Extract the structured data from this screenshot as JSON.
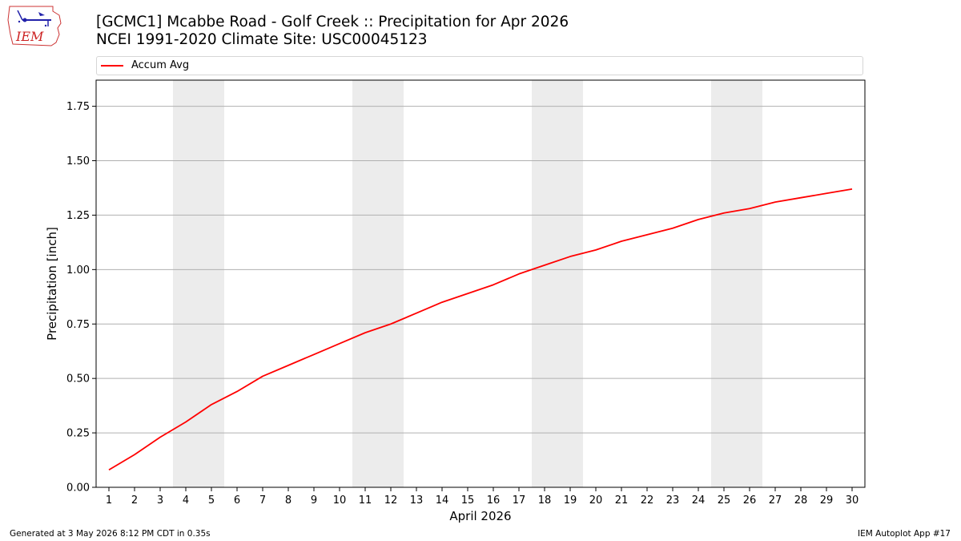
{
  "header": {
    "title_line1": "[GCMC1] Mcabbe Road - Golf Creek :: Precipitation for Apr 2026",
    "title_line2": "NCEI 1991-2020 Climate Site: USC00045123",
    "logo_text": "IEM"
  },
  "footer": {
    "generated": "Generated at 3 May 2026 8:12 PM CDT in 0.35s",
    "app": "IEM Autoplot App #17"
  },
  "colors": {
    "series": "#ff0000",
    "weekend_band": "#ececec",
    "grid": "#b0b0b0"
  },
  "chart_data": {
    "type": "line",
    "title": "[GCMC1] Mcabbe Road - Golf Creek :: Precipitation for Apr 2026",
    "subtitle": "NCEI 1991-2020 Climate Site: USC00045123",
    "xlabel": "April 2026",
    "ylabel": "Precipitation [inch]",
    "xlim": [
      0.5,
      30.5
    ],
    "ylim": [
      0,
      1.87
    ],
    "x_ticks": [
      1,
      2,
      3,
      4,
      5,
      6,
      7,
      8,
      9,
      10,
      11,
      12,
      13,
      14,
      15,
      16,
      17,
      18,
      19,
      20,
      21,
      22,
      23,
      24,
      25,
      26,
      27,
      28,
      29,
      30
    ],
    "y_ticks": [
      0,
      0.25,
      0.5,
      0.75,
      1.0,
      1.25,
      1.5,
      1.75
    ],
    "y_tick_labels": [
      "0.00",
      "0.25",
      "0.50",
      "0.75",
      "1.00",
      "1.25",
      "1.50",
      "1.75"
    ],
    "grid": "horizontal",
    "legend_position": "top",
    "weekend_bands": [
      [
        4,
        5
      ],
      [
        11,
        12
      ],
      [
        18,
        19
      ],
      [
        25,
        26
      ]
    ],
    "series": [
      {
        "name": "Accum Avg",
        "color": "#ff0000",
        "x": [
          1,
          2,
          3,
          4,
          5,
          6,
          7,
          8,
          9,
          10,
          11,
          12,
          13,
          14,
          15,
          16,
          17,
          18,
          19,
          20,
          21,
          22,
          23,
          24,
          25,
          26,
          27,
          28,
          29,
          30
        ],
        "values": [
          0.08,
          0.15,
          0.23,
          0.3,
          0.38,
          0.44,
          0.51,
          0.56,
          0.61,
          0.66,
          0.71,
          0.75,
          0.8,
          0.85,
          0.89,
          0.93,
          0.98,
          1.02,
          1.06,
          1.09,
          1.13,
          1.16,
          1.19,
          1.23,
          1.26,
          1.28,
          1.31,
          1.33,
          1.35,
          1.37
        ]
      }
    ]
  }
}
